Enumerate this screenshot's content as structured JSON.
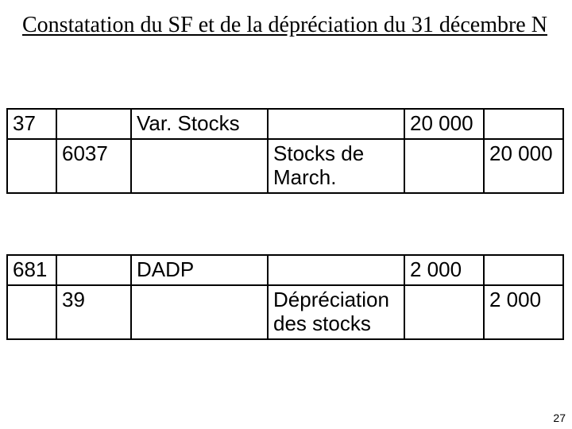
{
  "title": "Constatation du SF et de la dépréciation du 31 décembre N",
  "page_number": "27",
  "table1": {
    "row1": {
      "acct_debit": "37",
      "label_debit": "Var. Stocks",
      "amount_debit": "20 000"
    },
    "row2": {
      "acct_credit": "6037",
      "label_credit": "Stocks de March.",
      "amount_credit": "20 000"
    }
  },
  "table2": {
    "row1": {
      "acct_debit": "681",
      "label_debit": "DADP",
      "amount_debit": "2 000"
    },
    "row2": {
      "acct_credit": "39",
      "label_credit": "Dépréciation des stocks",
      "amount_credit": "2 000"
    }
  }
}
